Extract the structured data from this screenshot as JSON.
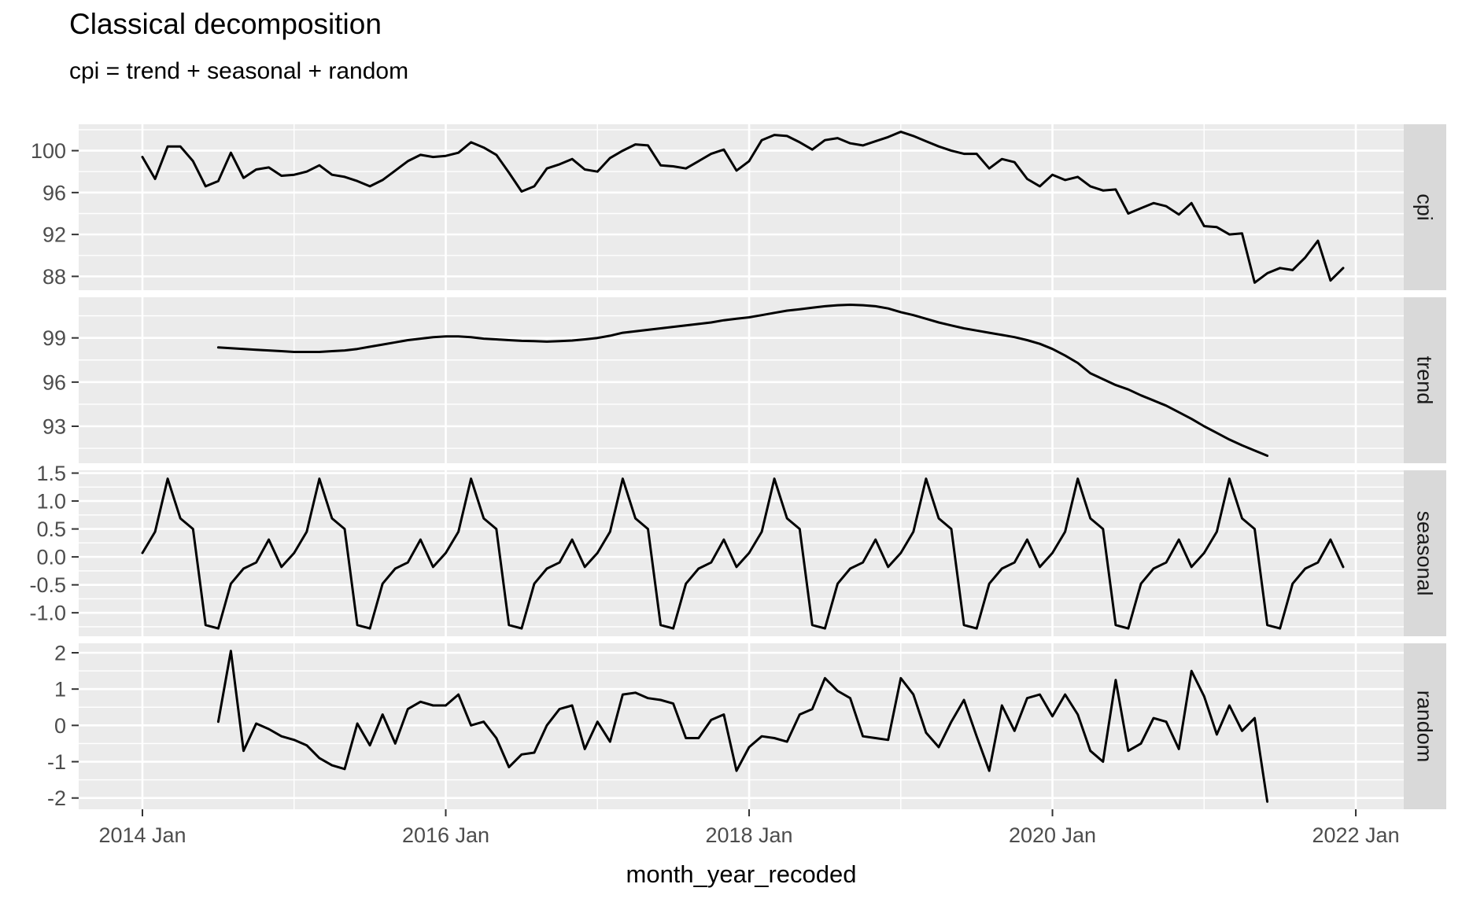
{
  "chart_data": {
    "type": "line",
    "title": "Classical decomposition",
    "subtitle": "cpi = trend + seasonal + random",
    "xlabel": "month_year_recoded",
    "legend": "none",
    "grid": "on",
    "panel_color": "#ebebeb",
    "strip_color": "#d9d9d9",
    "grid_color": "#ffffff",
    "line_color": "#000000",
    "axis_text_color": "#4d4d4d",
    "period": "monthly",
    "x_axis": {
      "tick_months": [
        0,
        24,
        48,
        72,
        96
      ],
      "tick_labels": [
        "2014 Jan",
        "2016 Jan",
        "2018 Jan",
        "2020 Jan",
        "2022 Jan"
      ],
      "minor_months": [
        12,
        36,
        60,
        84
      ]
    },
    "facets": [
      {
        "name": "cpi",
        "ylim": [
          86.68,
          102.52
        ],
        "yticks": [
          {
            "v": 100,
            "label": "100"
          },
          {
            "v": 96,
            "label": "96"
          },
          {
            "v": 92,
            "label": "92"
          },
          {
            "v": 88,
            "label": "88"
          }
        ],
        "start_month": 0,
        "start_label": "2014 Jan",
        "values": [
          99.4,
          97.3,
          100.4,
          100.4,
          99.0,
          96.6,
          97.1,
          99.8,
          97.4,
          98.2,
          98.4,
          97.6,
          97.7,
          98.0,
          98.6,
          97.7,
          97.5,
          97.1,
          96.6,
          97.2,
          98.1,
          99.0,
          99.6,
          99.4,
          99.5,
          99.8,
          100.8,
          100.3,
          99.6,
          97.9,
          96.1,
          96.6,
          98.3,
          98.7,
          99.2,
          98.2,
          98.0,
          99.3,
          100.0,
          100.6,
          100.5,
          98.6,
          98.5,
          98.3,
          99.0,
          99.7,
          100.1,
          98.1,
          99.0,
          101.0,
          101.5,
          101.4,
          100.8,
          100.1,
          101.0,
          101.2,
          100.7,
          100.5,
          100.9,
          101.3,
          101.8,
          101.4,
          100.9,
          100.4,
          100.0,
          99.7,
          99.7,
          98.3,
          99.2,
          98.9,
          97.3,
          96.6,
          97.7,
          97.2,
          97.5,
          96.6,
          96.2,
          96.3,
          94.0,
          94.5,
          95.0,
          94.7,
          93.9,
          95.0,
          92.8,
          92.7,
          92.0,
          92.1,
          87.4,
          88.3,
          88.8,
          88.6,
          89.8,
          91.4,
          87.6,
          88.8
        ]
      },
      {
        "name": "trend",
        "ylim": [
          90.49,
          101.76
        ],
        "yticks": [
          {
            "v": 99,
            "label": "99"
          },
          {
            "v": 96,
            "label": "96"
          },
          {
            "v": 93,
            "label": "93"
          }
        ],
        "start_month": 6,
        "start_label": "2014 Jul",
        "values": [
          98.35,
          98.3,
          98.25,
          98.2,
          98.15,
          98.1,
          98.05,
          98.05,
          98.05,
          98.1,
          98.15,
          98.25,
          98.4,
          98.55,
          98.7,
          98.85,
          98.95,
          99.05,
          99.1,
          99.1,
          99.05,
          98.95,
          98.9,
          98.85,
          98.8,
          98.78,
          98.75,
          98.78,
          98.82,
          98.9,
          99.0,
          99.15,
          99.35,
          99.45,
          99.55,
          99.65,
          99.75,
          99.85,
          99.95,
          100.05,
          100.2,
          100.3,
          100.4,
          100.55,
          100.7,
          100.85,
          100.95,
          101.05,
          101.15,
          101.22,
          101.25,
          101.22,
          101.15,
          101.0,
          100.75,
          100.55,
          100.3,
          100.05,
          99.85,
          99.65,
          99.5,
          99.35,
          99.2,
          99.05,
          98.85,
          98.6,
          98.25,
          97.8,
          97.3,
          96.6,
          96.2,
          95.8,
          95.5,
          95.1,
          94.75,
          94.4,
          93.95,
          93.5,
          93.0,
          92.55,
          92.1,
          91.7,
          91.35,
          91.0
        ]
      },
      {
        "name": "seasonal",
        "ylim": [
          -1.42,
          1.55
        ],
        "yticks": [
          {
            "v": 1.5,
            "label": "1.5"
          },
          {
            "v": 1.0,
            "label": "1.0"
          },
          {
            "v": 0.5,
            "label": "0.5"
          },
          {
            "v": 0.0,
            "label": "0.0"
          },
          {
            "v": -0.5,
            "label": "-0.5"
          },
          {
            "v": -1.0,
            "label": "-1.0"
          }
        ],
        "start_month": 0,
        "start_label": "2014 Jan",
        "pattern_jan_to_dec": [
          0.07,
          0.45,
          1.4,
          0.69,
          0.5,
          -1.22,
          -1.28,
          -0.48,
          -0.21,
          -0.1,
          0.31,
          -0.18
        ],
        "values": [
          0.07,
          0.45,
          1.4,
          0.69,
          0.5,
          -1.22,
          -1.28,
          -0.48,
          -0.21,
          -0.1,
          0.31,
          -0.18,
          0.07,
          0.45,
          1.4,
          0.69,
          0.5,
          -1.22,
          -1.28,
          -0.48,
          -0.21,
          -0.1,
          0.31,
          -0.18,
          0.07,
          0.45,
          1.4,
          0.69,
          0.5,
          -1.22,
          -1.28,
          -0.48,
          -0.21,
          -0.1,
          0.31,
          -0.18,
          0.07,
          0.45,
          1.4,
          0.69,
          0.5,
          -1.22,
          -1.28,
          -0.48,
          -0.21,
          -0.1,
          0.31,
          -0.18,
          0.07,
          0.45,
          1.4,
          0.69,
          0.5,
          -1.22,
          -1.28,
          -0.48,
          -0.21,
          -0.1,
          0.31,
          -0.18,
          0.07,
          0.45,
          1.4,
          0.69,
          0.5,
          -1.22,
          -1.28,
          -0.48,
          -0.21,
          -0.1,
          0.31,
          -0.18,
          0.07,
          0.45,
          1.4,
          0.69,
          0.5,
          -1.22,
          -1.28,
          -0.48,
          -0.21,
          -0.1,
          0.31,
          -0.18,
          0.07,
          0.45,
          1.4,
          0.69,
          0.5,
          -1.22,
          -1.28,
          -0.48,
          -0.21,
          -0.1,
          0.31,
          -0.18
        ]
      },
      {
        "name": "random",
        "ylim": [
          -2.31,
          2.26
        ],
        "yticks": [
          {
            "v": 2,
            "label": "2"
          },
          {
            "v": 1,
            "label": "1"
          },
          {
            "v": 0,
            "label": "0"
          },
          {
            "v": -1,
            "label": "-1"
          },
          {
            "v": -2,
            "label": "-2"
          }
        ],
        "start_month": 6,
        "start_label": "2014 Jul",
        "values": [
          0.1,
          2.05,
          -0.7,
          0.05,
          -0.1,
          -0.3,
          -0.4,
          -0.55,
          -0.9,
          -1.1,
          -1.2,
          0.05,
          -0.55,
          0.3,
          -0.5,
          0.45,
          0.65,
          0.55,
          0.55,
          0.85,
          0.0,
          0.1,
          -0.35,
          -1.15,
          -0.8,
          -0.75,
          0.0,
          0.45,
          0.55,
          -0.65,
          0.1,
          -0.45,
          0.85,
          0.9,
          0.75,
          0.7,
          0.6,
          -0.35,
          -0.35,
          0.15,
          0.3,
          -1.25,
          -0.6,
          -0.3,
          -0.35,
          -0.45,
          0.3,
          0.45,
          1.3,
          0.95,
          0.75,
          -0.3,
          -0.35,
          -0.4,
          1.3,
          0.85,
          -0.2,
          -0.6,
          0.1,
          0.7,
          -0.3,
          -1.25,
          0.55,
          -0.15,
          0.75,
          0.85,
          0.25,
          0.85,
          0.3,
          -0.7,
          -1.0,
          1.25,
          -0.7,
          -0.5,
          0.2,
          0.1,
          -0.65,
          1.5,
          0.8,
          -0.25,
          0.55,
          -0.15,
          0.2,
          -2.1
        ]
      }
    ]
  }
}
